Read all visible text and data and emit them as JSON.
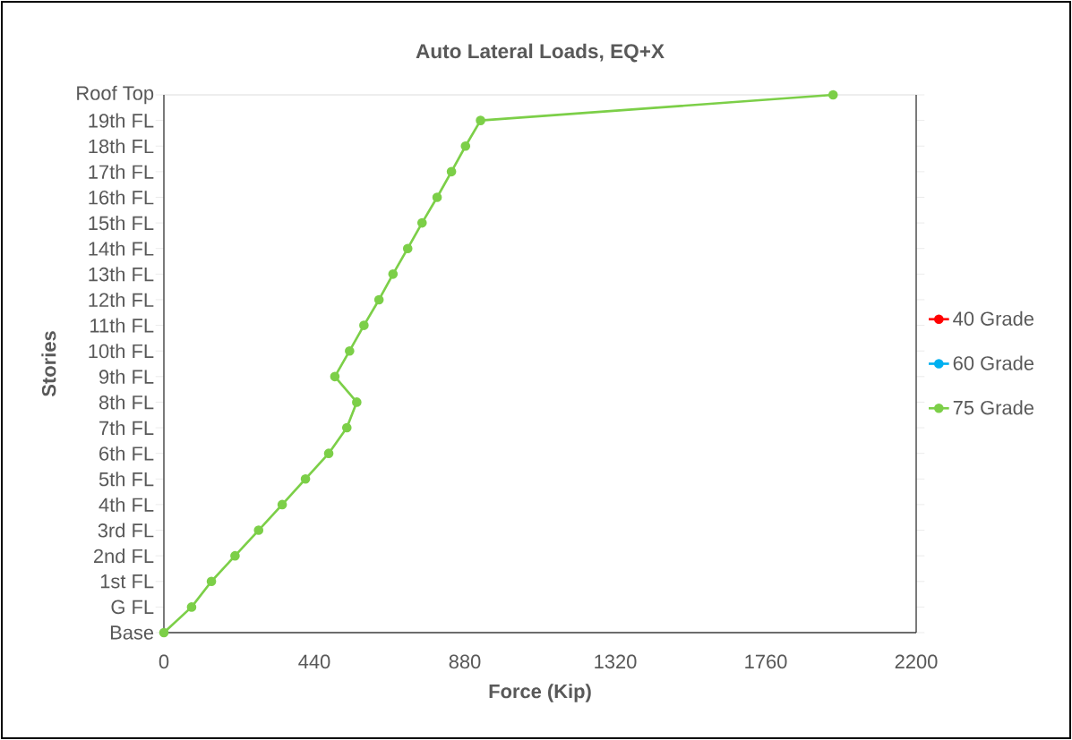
{
  "chart_data": {
    "type": "line",
    "title": "Auto Lateral Loads, EQ+X",
    "xlabel": "Force (Kip)",
    "ylabel": "Stories",
    "orientation": "horizontal",
    "categories": [
      "Roof Top",
      "19th FL",
      "18th FL",
      "17th FL",
      "16th FL",
      "15th FL",
      "14th FL",
      "13th FL",
      "12th FL",
      "11th FL",
      "10th FL",
      "9th FL",
      "8th FL",
      "7th FL",
      "6th FL",
      "5th FL",
      "4th FL",
      "3rd FL",
      "2nd FL",
      "1st FL",
      "G FL",
      "Base"
    ],
    "series": [
      {
        "name": "40 Grade",
        "color": "#ff0000",
        "values": [
          null,
          null,
          null,
          null,
          null,
          null,
          null,
          null,
          null,
          null,
          null,
          null,
          null,
          null,
          null,
          null,
          null,
          null,
          null,
          null,
          null,
          null
        ]
      },
      {
        "name": "60 Grade",
        "color": "#00b0f0",
        "values": [
          null,
          null,
          null,
          null,
          null,
          null,
          null,
          null,
          null,
          null,
          null,
          null,
          null,
          null,
          null,
          null,
          null,
          null,
          null,
          null,
          null,
          null
        ]
      },
      {
        "name": "75 Grade",
        "color": "#7ccf48",
        "values": [
          1957,
          926,
          882,
          841,
          799,
          755,
          713,
          670,
          629,
          585,
          543,
          500,
          564,
          535,
          482,
          414,
          346,
          277,
          208,
          139,
          81,
          0
        ]
      }
    ],
    "xlim": [
      0,
      2200
    ],
    "xticks": [
      0,
      440,
      880,
      1320,
      1760,
      2200
    ],
    "marker": "circle",
    "line_style": "solid",
    "legend": "right"
  }
}
